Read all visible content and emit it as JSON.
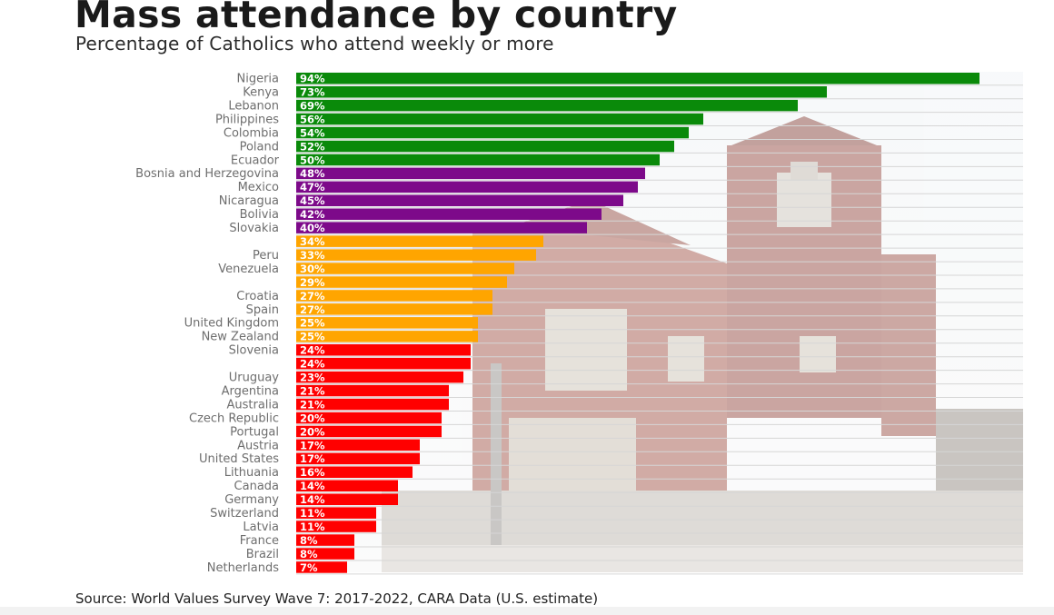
{
  "page": {
    "title": "Mass attendance by country",
    "subtitle": "Percentage of Catholics who attend weekly or more",
    "source": "Source: World Values Survey Wave 7: 2017-2022, CARA Data (U.S. estimate)"
  },
  "colors": {
    "green": "#0a8a0a",
    "purple": "#7d0a8a",
    "orange": "#ffa500",
    "red": "#ff0000",
    "label": "#6e6e6e",
    "value_label": "#ffffff"
  },
  "chart_data": {
    "type": "bar",
    "orientation": "horizontal",
    "title": "Mass attendance by country",
    "subtitle": "Percentage of Catholics who attend weekly or more",
    "xlabel": "",
    "ylabel": "",
    "xlim": [
      0,
      100
    ],
    "value_suffix": "%",
    "legend": "none",
    "grid": "horizontal lines",
    "background_image": "church photograph",
    "categories": [
      "Nigeria",
      "Kenya",
      "Lebanon",
      "Philippines",
      "Colombia",
      "Poland",
      "Ecuador",
      "Bosnia and Herzegovina",
      "Mexico",
      "Nicaragua",
      "Bolivia",
      "Slovakia",
      "",
      "Peru",
      "Venezuela",
      "",
      "Croatia",
      "Spain",
      "United Kingdom",
      "New Zealand",
      "Slovenia",
      "",
      "Uruguay",
      "Argentina",
      "Australia",
      "Czech Republic",
      "Portugal",
      "Austria",
      "United States",
      "Lithuania",
      "Canada",
      "Germany",
      "Switzerland",
      "Latvia",
      "France",
      "Brazil",
      "Netherlands"
    ],
    "values": [
      94,
      73,
      69,
      56,
      54,
      52,
      50,
      48,
      47,
      45,
      42,
      40,
      34,
      33,
      30,
      29,
      27,
      27,
      25,
      25,
      24,
      24,
      23,
      21,
      21,
      20,
      20,
      17,
      17,
      16,
      14,
      14,
      11,
      11,
      8,
      8,
      7
    ],
    "groups": [
      "green",
      "green",
      "green",
      "green",
      "green",
      "green",
      "green",
      "purple",
      "purple",
      "purple",
      "purple",
      "purple",
      "orange",
      "orange",
      "orange",
      "orange",
      "orange",
      "orange",
      "orange",
      "orange",
      "red",
      "red",
      "red",
      "red",
      "red",
      "red",
      "red",
      "red",
      "red",
      "red",
      "red",
      "red",
      "red",
      "red",
      "red",
      "red",
      "red"
    ]
  }
}
